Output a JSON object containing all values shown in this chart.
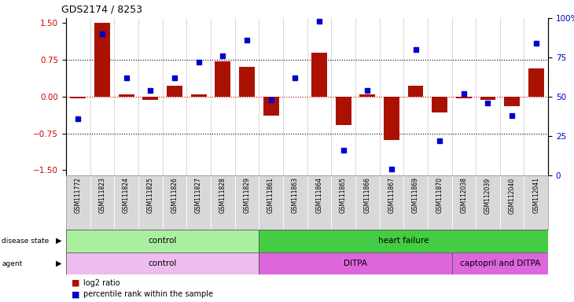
{
  "title": "GDS2174 / 8253",
  "samples": [
    "GSM111772",
    "GSM111823",
    "GSM111824",
    "GSM111825",
    "GSM111826",
    "GSM111827",
    "GSM111828",
    "GSM111829",
    "GSM111861",
    "GSM111863",
    "GSM111864",
    "GSM111865",
    "GSM111866",
    "GSM111867",
    "GSM111869",
    "GSM111870",
    "GSM112038",
    "GSM112039",
    "GSM112040",
    "GSM112041"
  ],
  "log2_ratio": [
    -0.04,
    1.5,
    0.05,
    -0.07,
    0.22,
    0.04,
    0.72,
    0.6,
    -0.38,
    0.0,
    0.9,
    -0.58,
    0.04,
    -0.88,
    0.22,
    -0.33,
    -0.04,
    -0.07,
    -0.2,
    0.58
  ],
  "percentile_rank": [
    36,
    90,
    62,
    54,
    62,
    72,
    76,
    86,
    48,
    62,
    98,
    16,
    54,
    4,
    80,
    22,
    52,
    46,
    38,
    84
  ],
  "bar_color": "#AA1100",
  "dot_color": "#0000CC",
  "ylim_left": [
    -1.6,
    1.6
  ],
  "ylim_right": [
    0,
    100
  ],
  "yticks_left": [
    -1.5,
    -0.75,
    0,
    0.75,
    1.5
  ],
  "yticks_right": [
    0,
    25,
    50,
    75,
    100
  ],
  "zero_line_color": "#CC0000",
  "background_color": "#ffffff",
  "disease_state_groups": [
    {
      "label": "control",
      "start": 0,
      "end": 8,
      "color": "#AAEEA0"
    },
    {
      "label": "heart failure",
      "start": 8,
      "end": 20,
      "color": "#44CC44"
    }
  ],
  "agent_groups": [
    {
      "label": "control",
      "start": 0,
      "end": 8,
      "color": "#EEBCEE"
    },
    {
      "label": "DITPA",
      "start": 8,
      "end": 16,
      "color": "#DD66DD"
    },
    {
      "label": "captopril and DITPA",
      "start": 16,
      "end": 20,
      "color": "#DD66DD"
    }
  ]
}
